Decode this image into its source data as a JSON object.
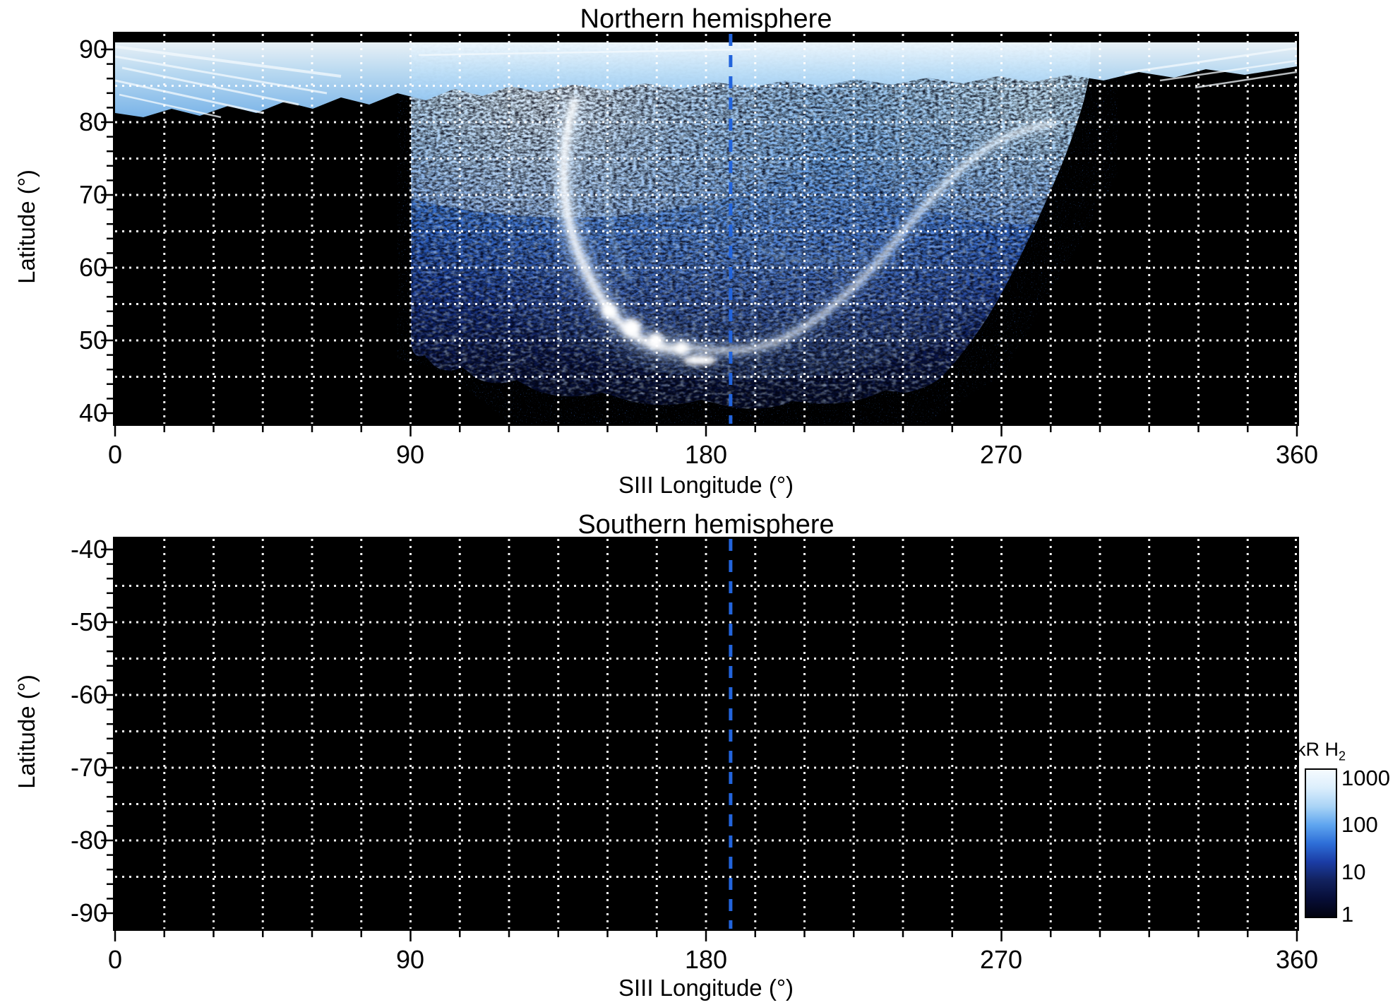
{
  "figure": {
    "panels": {
      "north": {
        "title": "Northern hemisphere",
        "xlabel": "SIII Longitude (°)",
        "ylabel": "Latitude (°)",
        "yticks": [
          "90",
          "80",
          "70",
          "60",
          "50",
          "40"
        ],
        "xticks": [
          "0",
          "90",
          "180",
          "270",
          "360"
        ]
      },
      "south": {
        "title": "Southern hemisphere",
        "xlabel": "SIII Longitude (°)",
        "ylabel": "Latitude (°)",
        "yticks": [
          "-40",
          "-50",
          "-60",
          "-70",
          "-80",
          "-90"
        ],
        "xticks": [
          "0",
          "90",
          "180",
          "270",
          "360"
        ]
      }
    },
    "colorbar": {
      "title": "kR H",
      "title_sub": "2",
      "tick_labels": [
        "1000",
        "100",
        "10",
        "1"
      ],
      "scale": "log",
      "min": 1,
      "max": 1000,
      "gradient": [
        "#f6fbff",
        "#dbeefc",
        "#a9d4f6",
        "#5fa5ef",
        "#2e6fd8",
        "#1b3da6",
        "#12225f",
        "#070e38",
        "#02030f"
      ]
    },
    "grid": {
      "x_spacing_deg": 15,
      "y_spacing_deg": 5,
      "color": "#ffffff",
      "style": "dotted"
    },
    "reference_line": {
      "longitude_deg": 187.5,
      "color": "#2264dc",
      "style": "dashed"
    },
    "axes": {
      "lon_min": 0,
      "lon_max": 360,
      "north_lat": [
        40,
        90
      ],
      "south_lat": [
        -90,
        -40
      ]
    }
  },
  "chart_data": {
    "type": "heatmap",
    "xlabel": "SIII Longitude (°)",
    "ylabel": "Latitude (°)",
    "x_range": [
      0,
      360
    ],
    "x_ticks": [
      0,
      90,
      180,
      270,
      360
    ],
    "x_grid_spacing_deg": 15,
    "y_grid_spacing_deg": 5,
    "value_units": "kR H2",
    "value_scale": "log",
    "value_range": [
      1,
      1000
    ],
    "colormap": "black -> dark navy -> blue -> white (log brightness)",
    "reference_line_lon_deg": 187.5,
    "panels": [
      {
        "name": "Northern hemisphere",
        "y_range": [
          40,
          90
        ],
        "y_ticks": [
          40,
          50,
          60,
          70,
          80,
          90
        ],
        "coverage": "UV auroral emission map: bright speckled blue fan between ~90° and ~300° longitude extending from the pole down to ~50° latitude (sparse emission to ~40° near 150–230°); thin light-blue polar band at ~85–90° latitude across all longitudes; black (below ~1 kR) elsewhere",
        "main_oval_lon_lat": [
          [
            143,
            83
          ],
          [
            139,
            76
          ],
          [
            140,
            70
          ],
          [
            144,
            65
          ],
          [
            150,
            61
          ],
          [
            157,
            57.5
          ],
          [
            164,
            55.5
          ],
          [
            172,
            54.5
          ],
          [
            180,
            55
          ],
          [
            190,
            56.5
          ],
          [
            200,
            59
          ],
          [
            212,
            62.5
          ],
          [
            224,
            67
          ],
          [
            236,
            72
          ],
          [
            248,
            77
          ],
          [
            258,
            81
          ]
        ],
        "bright_spots_lon_lat": [
          [
            158,
            58
          ],
          [
            165,
            56
          ],
          [
            172,
            55
          ],
          [
            178,
            53.5
          ]
        ],
        "peak_kR": 1000
      },
      {
        "name": "Southern hemisphere",
        "y_range": [
          -90,
          -40
        ],
        "y_ticks": [
          -90,
          -80,
          -70,
          -60,
          -50,
          -40
        ],
        "coverage": "no detected emission — panel entirely black (below ~1 kR)"
      }
    ],
    "colorbar": {
      "label": "kR H2",
      "ticks": [
        1,
        10,
        100,
        1000
      ],
      "scale": "log"
    }
  }
}
